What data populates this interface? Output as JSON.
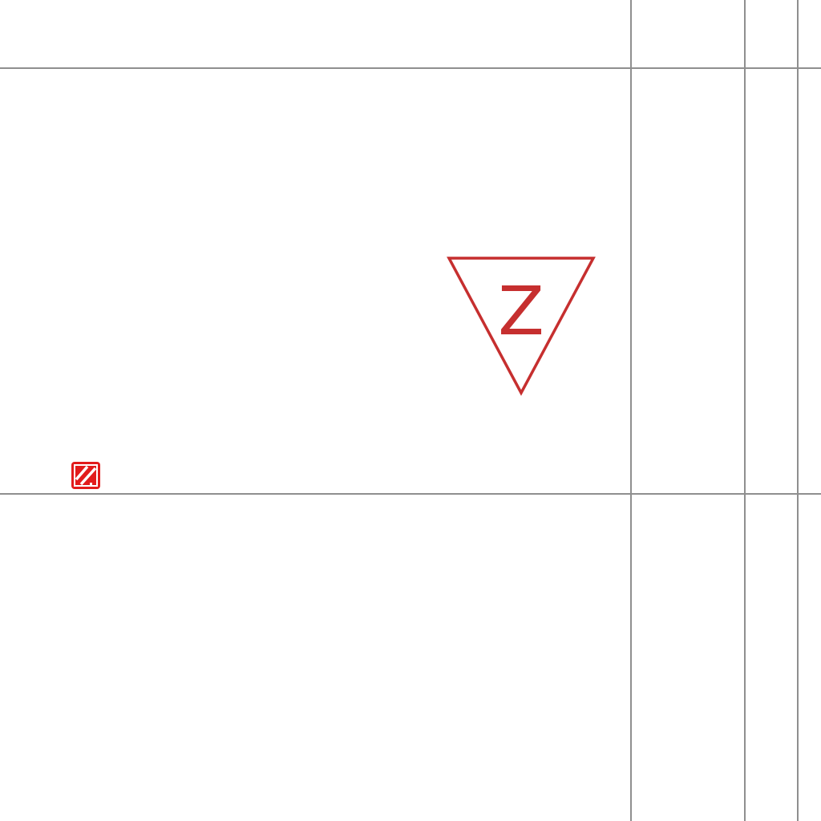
{
  "canvas": {
    "background_color": "#ffffff",
    "grid_line_color": "#8f8f8f"
  },
  "map_symbol": {
    "shape": "inverted-triangle",
    "letter": "Z",
    "color": "#c62f2f"
  },
  "toolbar_icon": {
    "icon": "edit-pattern-icon",
    "color": "#e21b1b"
  }
}
